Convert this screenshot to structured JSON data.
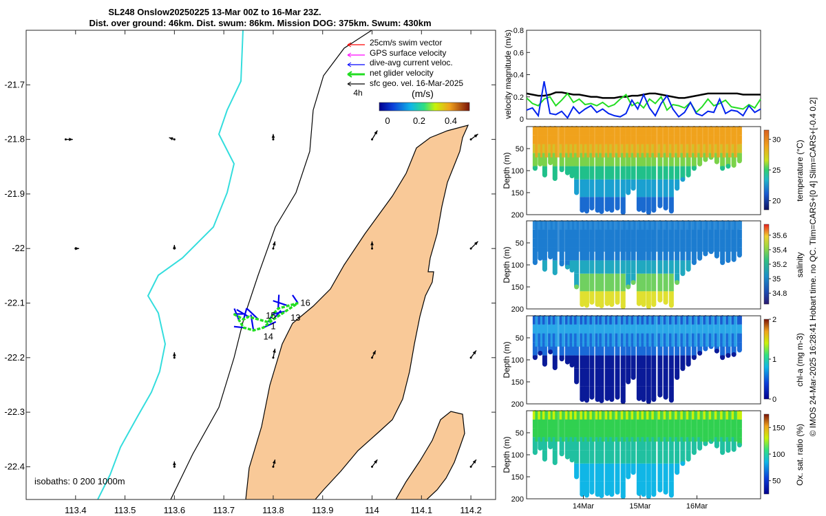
{
  "header": {
    "title_line1": "SL248 Onslow20250225 13-Mar 00Z to 16-Mar 23Z.",
    "title_line2": "Dist. over ground: 46km. Dist. swum: 86km. Mission DOG: 375km. Swum: 430km"
  },
  "footer_text": "© IMOS 24-Mar-2025 16:28:41 Hobart time. no QC. Tlim=CARS+[0 4] Slim=CARS+[-0.4 0.2]",
  "colors": {
    "land": "#f9c998",
    "coast_shallow": "#33dddd",
    "coast_line": "#000000",
    "temp_warm": "#f0a21c",
    "temp_cool": "#1a78d0"
  },
  "chart_data": [
    {
      "type": "map",
      "title": "SL248 Onslow20250225 13-Mar 00Z to 16-Mar 23Z.",
      "xlim": [
        113.3,
        114.25
      ],
      "ylim": [
        -22.46,
        -21.6
      ],
      "x_ticks": [
        113.4,
        113.5,
        113.6,
        113.7,
        113.8,
        113.9,
        114,
        114.1,
        114.2
      ],
      "x_tick_labels": [
        "113.4",
        "113.5",
        "113.6",
        "113.7",
        "113.8",
        "113.9",
        "114",
        "114.1",
        "114.2"
      ],
      "y_ticks": [
        -21.7,
        -21.8,
        -21.9,
        -22.0,
        -22.1,
        -22.2,
        -22.3,
        -22.4
      ],
      "y_tick_labels": [
        "-21.7",
        "-21.8",
        "-21.9",
        "-22",
        "-22.1",
        "-22.2",
        "-22.3",
        "-22.4"
      ],
      "legend": [
        {
          "label": "25cm/s swim vector",
          "color": "#ff0000"
        },
        {
          "label": "GPS surface velocity",
          "color": "#ff00ff"
        },
        {
          "label": "dive-avg current veloc.",
          "color": "#0000ff"
        },
        {
          "label": "net glider velocity",
          "color": "#22dd22"
        },
        {
          "label": "sfc geo. vel. 16-Mar-2025",
          "color": "#000000"
        }
      ],
      "legend_extra": "4h",
      "colorbar_title": "(m/s)",
      "colorbar_ticks": [
        "0",
        "0.2",
        "0.4"
      ],
      "isobaths_label": "isobaths: 0   200  1000m",
      "day_labels": [
        {
          "text": "16",
          "lon": 113.855,
          "lat": -22.1
        },
        {
          "text": "15",
          "lon": 113.785,
          "lat": -22.123
        },
        {
          "text": "13",
          "lon": 113.835,
          "lat": -22.127
        },
        {
          "text": "1",
          "lon": 113.795,
          "lat": -22.143
        },
        {
          "text": "14",
          "lon": 113.78,
          "lat": -22.162
        }
      ],
      "geo_vectors": [
        {
          "lon": 113.38,
          "lat": -21.8,
          "u": 0.04,
          "v": 0.0
        },
        {
          "lon": 113.6,
          "lat": -21.8,
          "u": -0.03,
          "v": 0.01
        },
        {
          "lon": 113.8,
          "lat": -21.8,
          "u": 0.0,
          "v": 0.03
        },
        {
          "lon": 114.0,
          "lat": -21.8,
          "u": 0.03,
          "v": 0.05
        },
        {
          "lon": 114.2,
          "lat": -21.8,
          "u": 0.04,
          "v": 0.03
        },
        {
          "lon": 113.4,
          "lat": -22.0,
          "u": 0.02,
          "v": 0.0
        },
        {
          "lon": 113.6,
          "lat": -22.0,
          "u": 0.0,
          "v": 0.02
        },
        {
          "lon": 113.8,
          "lat": -22.0,
          "u": 0.01,
          "v": 0.04
        },
        {
          "lon": 114.0,
          "lat": -22.0,
          "u": 0.0,
          "v": 0.04
        },
        {
          "lon": 114.2,
          "lat": -22.0,
          "u": 0.04,
          "v": 0.04
        },
        {
          "lon": 113.6,
          "lat": -22.2,
          "u": 0.0,
          "v": 0.03
        },
        {
          "lon": 113.8,
          "lat": -22.2,
          "u": 0.01,
          "v": 0.05
        },
        {
          "lon": 114.0,
          "lat": -22.2,
          "u": 0.02,
          "v": 0.04
        },
        {
          "lon": 114.2,
          "lat": -22.2,
          "u": 0.03,
          "v": 0.04
        },
        {
          "lon": 113.6,
          "lat": -22.4,
          "u": 0.0,
          "v": 0.03
        },
        {
          "lon": 113.8,
          "lat": -22.4,
          "u": 0.01,
          "v": 0.04
        },
        {
          "lon": 114.0,
          "lat": -22.4,
          "u": 0.03,
          "v": 0.04
        },
        {
          "lon": 114.2,
          "lat": -22.4,
          "u": 0.03,
          "v": 0.04
        }
      ],
      "glider_track": [
        [
          113.72,
          -22.12
        ],
        [
          113.74,
          -22.13
        ],
        [
          113.75,
          -22.125
        ],
        [
          113.77,
          -22.13
        ],
        [
          113.79,
          -22.135
        ],
        [
          113.8,
          -22.12
        ],
        [
          113.81,
          -22.11
        ],
        [
          113.83,
          -22.105
        ],
        [
          113.85,
          -22.1
        ],
        [
          113.8,
          -22.13
        ],
        [
          113.78,
          -22.145
        ],
        [
          113.76,
          -22.15
        ],
        [
          113.74,
          -22.145
        ],
        [
          113.73,
          -22.13
        ]
      ]
    },
    {
      "type": "line",
      "ylabel": "velocity magnitude (m/s)",
      "ylim": [
        0,
        0.8
      ],
      "y_ticks": [
        0,
        0.2,
        0.4,
        0.6,
        0.8
      ],
      "y_tick_labels": [
        "0",
        "0.2",
        "0.4",
        "0.6",
        "0.8"
      ],
      "x": [
        0,
        0.1,
        0.2,
        0.3,
        0.4,
        0.5,
        0.6,
        0.7,
        0.8,
        0.9,
        1.0,
        1.1,
        1.2,
        1.3,
        1.4,
        1.5,
        1.6,
        1.7,
        1.8,
        1.9,
        2.0,
        2.1,
        2.2,
        2.3,
        2.4,
        2.5,
        2.6,
        2.7,
        2.8,
        2.9,
        3.0,
        3.1,
        3.2,
        3.3,
        3.4,
        3.5,
        3.6,
        3.7,
        3.8,
        3.9,
        4.0
      ],
      "series": [
        {
          "name": "geostrophic",
          "color": "#000000",
          "values": [
            0.23,
            0.22,
            0.21,
            0.21,
            0.22,
            0.24,
            0.24,
            0.23,
            0.22,
            0.22,
            0.21,
            0.2,
            0.2,
            0.19,
            0.19,
            0.19,
            0.2,
            0.2,
            0.21,
            0.21,
            0.22,
            0.23,
            0.23,
            0.22,
            0.21,
            0.2,
            0.19,
            0.19,
            0.2,
            0.21,
            0.22,
            0.23,
            0.23,
            0.23,
            0.23,
            0.23,
            0.23,
            0.22,
            0.22,
            0.22,
            0.22
          ]
        },
        {
          "name": "net glider velocity",
          "color": "#22dd22",
          "values": [
            0.19,
            0.14,
            0.12,
            0.18,
            0.2,
            0.12,
            0.17,
            0.23,
            0.15,
            0.18,
            0.13,
            0.14,
            0.12,
            0.15,
            0.11,
            0.13,
            0.18,
            0.22,
            0.12,
            0.15,
            0.1,
            0.18,
            0.14,
            0.2,
            0.08,
            0.13,
            0.12,
            0.1,
            0.15,
            0.06,
            0.11,
            0.18,
            0.12,
            0.14,
            0.17,
            0.11,
            0.1,
            0.09,
            0.13,
            0.1,
            0.18
          ]
        },
        {
          "name": "dive-avg current",
          "color": "#0022ee",
          "values": [
            0.08,
            0.1,
            0.03,
            0.34,
            0.05,
            0.04,
            0.07,
            0.01,
            0.11,
            0.05,
            0.09,
            0.12,
            0.06,
            0.09,
            0.05,
            0.03,
            0.02,
            0.05,
            0.17,
            0.09,
            0.22,
            0.1,
            0.03,
            0.14,
            0.21,
            0.09,
            0.02,
            0.06,
            0.15,
            0.05,
            0.03,
            0.07,
            0.06,
            0.18,
            0.05,
            0.08,
            0.07,
            0.03,
            0.12,
            0.06,
            0.09
          ]
        }
      ]
    },
    {
      "type": "heatmap",
      "variable": "temperature",
      "ylabel": "Depth (m)",
      "colorbar_label": "temperature (°C)",
      "clim": [
        18.5,
        31.5
      ],
      "colorbar_ticks": [
        "20",
        "25",
        "30"
      ],
      "colorbar_tick_values": [
        20,
        25,
        30
      ],
      "ylim": [
        0,
        200
      ],
      "y_ticks": [
        50,
        100,
        150,
        200
      ],
      "y_tick_labels": [
        "50",
        "100",
        "150",
        "200"
      ]
    },
    {
      "type": "heatmap",
      "variable": "salinity",
      "ylabel": "Depth (m)",
      "colorbar_label": "salinity",
      "clim": [
        34.65,
        35.75
      ],
      "colorbar_ticks": [
        "34.8",
        "35",
        "35.2",
        "35.4",
        "35.6"
      ],
      "colorbar_tick_values": [
        34.8,
        35.0,
        35.2,
        35.4,
        35.6
      ],
      "ylim": [
        0,
        200
      ],
      "y_ticks": [
        50,
        100,
        150,
        200
      ],
      "y_tick_labels": [
        "50",
        "100",
        "150",
        "200"
      ]
    },
    {
      "type": "heatmap",
      "variable": "chl-a",
      "ylabel": "Depth (m)",
      "colorbar_label": "chl-a (mg m-3)",
      "clim": [
        0,
        2
      ],
      "colorbar_ticks": [
        "0",
        "1",
        "2"
      ],
      "colorbar_tick_values": [
        0,
        1,
        2
      ],
      "ylim": [
        0,
        200
      ],
      "y_ticks": [
        50,
        100,
        150,
        200
      ],
      "y_tick_labels": [
        "50",
        "100",
        "150",
        "200"
      ]
    },
    {
      "type": "heatmap",
      "variable": "oxygen",
      "ylabel": "Depth (m)",
      "colorbar_label": "Ox. sat. ratio (%)",
      "clim": [
        25,
        175
      ],
      "colorbar_ticks": [
        "50",
        "100",
        "150"
      ],
      "colorbar_tick_values": [
        50,
        100,
        150
      ],
      "ylim": [
        0,
        200
      ],
      "y_ticks": [
        50,
        100,
        150,
        200
      ],
      "y_tick_labels": [
        "50",
        "100",
        "150",
        "200"
      ],
      "x_ticks": [
        1,
        2,
        3
      ],
      "x_tick_labels": [
        "14Mar",
        "15Mar",
        "16Mar"
      ],
      "xlim": [
        0,
        4
      ]
    }
  ],
  "transects": {
    "times": [
      0.15,
      0.24,
      0.32,
      0.42,
      0.5,
      0.62,
      0.72,
      0.8,
      0.88,
      0.98,
      1.06,
      1.15,
      1.25,
      1.32,
      1.42,
      1.5,
      1.6,
      1.7,
      1.79,
      1.88,
      1.98,
      2.06,
      2.15,
      2.24,
      2.35,
      2.45,
      2.55,
      2.65,
      2.75,
      2.85,
      2.95,
      3.05,
      3.15,
      3.25,
      3.35,
      3.45,
      3.55,
      3.65,
      3.75
    ],
    "max_depths": [
      95,
      85,
      110,
      82,
      118,
      98,
      105,
      112,
      150,
      190,
      192,
      185,
      190,
      193,
      188,
      190,
      185,
      195,
      150,
      140,
      188,
      190,
      195,
      190,
      180,
      185,
      192,
      140,
      120,
      110,
      95,
      85,
      75,
      70,
      80,
      95,
      90,
      88,
      78
    ]
  }
}
